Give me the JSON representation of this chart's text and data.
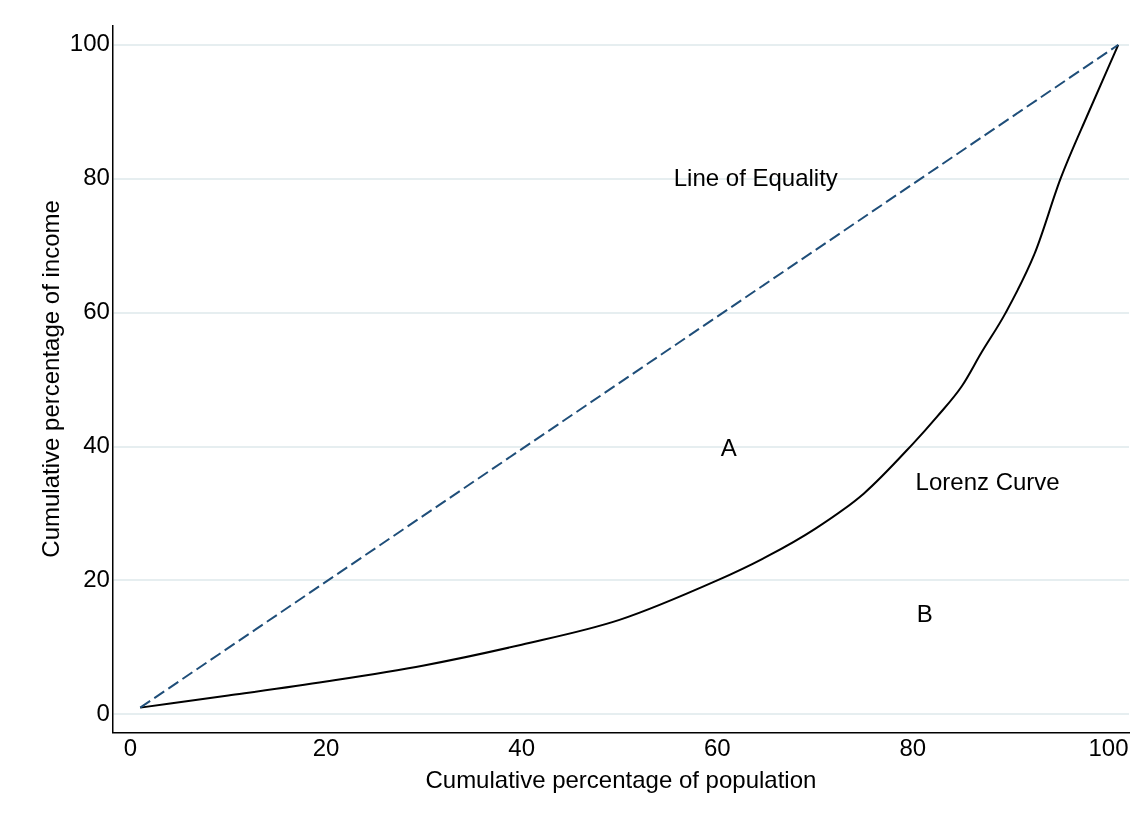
{
  "chart_data": {
    "type": "line",
    "xlabel": "Cumulative percentage of population",
    "ylabel": "Cumulative percentage of income",
    "xlim": [
      -1.8,
      102.1
    ],
    "ylim": [
      -2.7,
      102.9
    ],
    "xticks": [
      0,
      20,
      40,
      60,
      80,
      100
    ],
    "yticks": [
      0,
      20,
      40,
      60,
      80,
      100
    ],
    "grid": "y",
    "legend": false,
    "marker": "none",
    "series": [
      {
        "name": "Line of Equality",
        "line_style": "dashed",
        "color": "#1f4e79",
        "x": [
          1,
          101
        ],
        "values": [
          1,
          100
        ]
      },
      {
        "name": "Lorenz Curve",
        "line_style": "solid",
        "color": "#000000",
        "x": [
          1,
          10,
          20,
          30,
          40,
          50,
          60,
          65,
          70,
          75,
          80,
          82.5,
          85,
          87,
          89.5,
          92.5,
          95.1,
          98,
          101
        ],
        "values": [
          1,
          2.8,
          4.9,
          7.3,
          10.4,
          14.1,
          20,
          23.5,
          27.7,
          33,
          40.4,
          44.5,
          49,
          54,
          60,
          69,
          80,
          90,
          100
        ]
      }
    ],
    "annotations": [
      "A",
      "B"
    ]
  }
}
